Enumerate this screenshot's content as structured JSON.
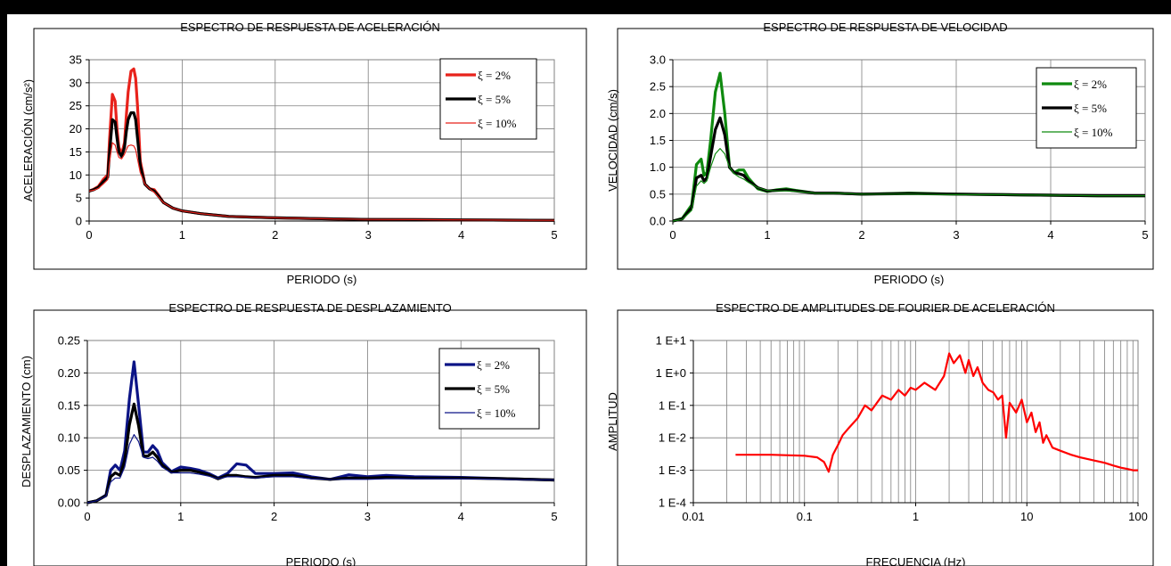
{
  "charts": [
    {
      "type": "line",
      "title": "ESPECTRO DE RESPUESTA DE ACELERACIÓN",
      "xlabel": "PERIODO (s)",
      "ylabel": "ACELERACIÓN (cm/s²)",
      "xlim": [
        0,
        5
      ],
      "ylim": [
        0,
        35
      ],
      "xticks": [
        "0",
        "1",
        "2",
        "3",
        "4",
        "5"
      ],
      "yticks": [
        "0",
        "5",
        "10",
        "15",
        "20",
        "25",
        "30",
        "35"
      ],
      "legend_position": "top-right",
      "series": [
        {
          "name": "ξ = 2%",
          "color": "#e8221b",
          "width": 3.2,
          "x": [
            0,
            0.05,
            0.1,
            0.15,
            0.2,
            0.22,
            0.25,
            0.28,
            0.3,
            0.32,
            0.35,
            0.38,
            0.4,
            0.42,
            0.45,
            0.48,
            0.5,
            0.52,
            0.55,
            0.58,
            0.6,
            0.65,
            0.7,
            0.75,
            0.8,
            0.9,
            1,
            1.2,
            1.5,
            2,
            2.5,
            3,
            3.5,
            4,
            4.5,
            5
          ],
          "y": [
            6.5,
            6.9,
            7.5,
            9,
            10,
            18,
            27.5,
            26,
            20,
            16,
            14.5,
            17,
            23,
            28,
            32.5,
            33,
            31,
            25,
            13,
            10,
            8,
            7,
            6.8,
            5.5,
            4,
            2.8,
            2.2,
            1.6,
            1,
            0.7,
            0.5,
            0.35,
            0.3,
            0.25,
            0.2,
            0.15
          ]
        },
        {
          "name": "ξ = 5%",
          "color": "#000000",
          "width": 3.2,
          "x": [
            0,
            0.05,
            0.1,
            0.15,
            0.2,
            0.22,
            0.25,
            0.28,
            0.3,
            0.32,
            0.35,
            0.38,
            0.4,
            0.42,
            0.45,
            0.48,
            0.5,
            0.52,
            0.55,
            0.58,
            0.6,
            0.65,
            0.7,
            0.75,
            0.8,
            0.9,
            1,
            1.2,
            1.5,
            2,
            2.5,
            3,
            3.5,
            4,
            4.5,
            5
          ],
          "y": [
            6.5,
            6.8,
            7.3,
            8.5,
            9.5,
            15,
            22,
            21.5,
            18,
            15,
            14,
            16,
            19.5,
            22,
            23.5,
            23.5,
            22,
            18,
            12,
            9.5,
            8,
            7,
            6.5,
            5.3,
            4,
            2.8,
            2.2,
            1.6,
            1,
            0.7,
            0.5,
            0.35,
            0.3,
            0.25,
            0.2,
            0.15
          ]
        },
        {
          "name": "ξ = 10%",
          "color": "#e8221b",
          "width": 1.2,
          "x": [
            0,
            0.05,
            0.1,
            0.15,
            0.2,
            0.22,
            0.25,
            0.28,
            0.3,
            0.32,
            0.35,
            0.38,
            0.4,
            0.42,
            0.45,
            0.48,
            0.5,
            0.52,
            0.55,
            0.58,
            0.6,
            0.65,
            0.7,
            0.75,
            0.8,
            0.9,
            1,
            1.2,
            1.5,
            2,
            2.5,
            3,
            3.5,
            4,
            4.5,
            5
          ],
          "y": [
            6.5,
            6.7,
            7.1,
            8,
            9,
            13,
            17,
            16.5,
            15,
            13.8,
            13.5,
            14.5,
            15.5,
            16.3,
            16.5,
            16.3,
            15.5,
            13.5,
            10.5,
            9,
            8,
            7,
            6.2,
            5.1,
            4,
            2.8,
            2.2,
            1.6,
            1,
            0.7,
            0.5,
            0.35,
            0.3,
            0.25,
            0.2,
            0.15
          ]
        }
      ]
    },
    {
      "type": "line",
      "title": "ESPECTRO DE RESPUESTA DE VELOCIDAD",
      "xlabel": "PERIODO (s)",
      "ylabel": "VELOCIDAD (cm/s)",
      "xlim": [
        0,
        5
      ],
      "ylim": [
        0,
        3
      ],
      "xticks": [
        "0",
        "1",
        "2",
        "3",
        "4",
        "5"
      ],
      "yticks": [
        "0.0",
        "0.5",
        "1.0",
        "1.5",
        "2.0",
        "2.5",
        "3.0"
      ],
      "legend_position": "top-right",
      "series": [
        {
          "name": "ξ = 2%",
          "color": "#0f8a0f",
          "width": 3.2,
          "x": [
            0,
            0.1,
            0.2,
            0.25,
            0.3,
            0.33,
            0.36,
            0.4,
            0.45,
            0.5,
            0.55,
            0.6,
            0.65,
            0.7,
            0.75,
            0.8,
            0.9,
            1,
            1.1,
            1.2,
            1.3,
            1.5,
            1.7,
            2,
            2.5,
            3,
            3.5,
            4,
            4.5,
            5
          ],
          "y": [
            0,
            0.05,
            0.3,
            1.05,
            1.15,
            0.85,
            0.9,
            1.5,
            2.4,
            2.75,
            2,
            1,
            0.9,
            0.95,
            0.95,
            0.8,
            0.6,
            0.55,
            0.58,
            0.6,
            0.57,
            0.52,
            0.52,
            0.5,
            0.52,
            0.5,
            0.49,
            0.48,
            0.47,
            0.47
          ]
        },
        {
          "name": "ξ = 5%",
          "color": "#000000",
          "width": 3.2,
          "x": [
            0,
            0.1,
            0.2,
            0.25,
            0.3,
            0.33,
            0.36,
            0.4,
            0.45,
            0.5,
            0.55,
            0.6,
            0.65,
            0.7,
            0.75,
            0.8,
            0.9,
            1,
            1.1,
            1.2,
            1.3,
            1.5,
            1.7,
            2,
            2.5,
            3,
            3.5,
            4,
            4.5,
            5
          ],
          "y": [
            0,
            0.04,
            0.25,
            0.8,
            0.85,
            0.75,
            0.8,
            1.2,
            1.7,
            1.92,
            1.6,
            1,
            0.9,
            0.88,
            0.85,
            0.75,
            0.62,
            0.56,
            0.57,
            0.58,
            0.56,
            0.52,
            0.52,
            0.5,
            0.51,
            0.5,
            0.49,
            0.48,
            0.47,
            0.47
          ]
        },
        {
          "name": "ξ = 10%",
          "color": "#0f8a0f",
          "width": 1.2,
          "x": [
            0,
            0.1,
            0.2,
            0.25,
            0.3,
            0.33,
            0.36,
            0.4,
            0.45,
            0.5,
            0.55,
            0.6,
            0.65,
            0.7,
            0.75,
            0.8,
            0.9,
            1,
            1.1,
            1.2,
            1.3,
            1.5,
            1.7,
            2,
            2.5,
            3,
            3.5,
            4,
            4.5,
            5
          ],
          "y": [
            0,
            0.03,
            0.2,
            0.65,
            0.75,
            0.7,
            0.75,
            1,
            1.25,
            1.35,
            1.25,
            1,
            0.88,
            0.82,
            0.78,
            0.72,
            0.62,
            0.57,
            0.56,
            0.56,
            0.55,
            0.52,
            0.52,
            0.5,
            0.5,
            0.49,
            0.49,
            0.48,
            0.47,
            0.47
          ]
        }
      ]
    },
    {
      "type": "line",
      "title": "ESPECTRO DE RESPUESTA DE DESPLAZAMIENTO",
      "xlabel": "PERIODO (s)",
      "ylabel": "DESPLAZAMIENTO (cm)",
      "xlim": [
        0,
        5
      ],
      "ylim": [
        0,
        0.25
      ],
      "xticks": [
        "0",
        "1",
        "2",
        "3",
        "4",
        "5"
      ],
      "yticks": [
        "0.00",
        "0.05",
        "0.10",
        "0.15",
        "0.20",
        "0.25"
      ],
      "legend_position": "top-right",
      "series": [
        {
          "name": "ξ = 2%",
          "color": "#0c1486",
          "width": 3.2,
          "x": [
            0,
            0.1,
            0.2,
            0.25,
            0.3,
            0.35,
            0.4,
            0.45,
            0.5,
            0.55,
            0.6,
            0.65,
            0.7,
            0.75,
            0.8,
            0.9,
            1,
            1.1,
            1.2,
            1.3,
            1.4,
            1.5,
            1.6,
            1.7,
            1.8,
            2,
            2.2,
            2.4,
            2.6,
            2.8,
            3,
            3.2,
            3.5,
            4,
            4.5,
            5
          ],
          "y": [
            0,
            0.003,
            0.012,
            0.05,
            0.058,
            0.05,
            0.08,
            0.16,
            0.217,
            0.15,
            0.078,
            0.078,
            0.088,
            0.08,
            0.062,
            0.048,
            0.055,
            0.053,
            0.05,
            0.045,
            0.038,
            0.045,
            0.06,
            0.058,
            0.045,
            0.045,
            0.046,
            0.04,
            0.036,
            0.043,
            0.04,
            0.042,
            0.04,
            0.039,
            0.037,
            0.035
          ]
        },
        {
          "name": "ξ = 5%",
          "color": "#000000",
          "width": 3.2,
          "x": [
            0,
            0.1,
            0.2,
            0.25,
            0.3,
            0.35,
            0.4,
            0.45,
            0.5,
            0.55,
            0.6,
            0.65,
            0.7,
            0.75,
            0.8,
            0.9,
            1,
            1.1,
            1.2,
            1.3,
            1.4,
            1.5,
            1.6,
            1.7,
            1.8,
            2,
            2.2,
            2.4,
            2.6,
            2.8,
            3,
            3.2,
            3.5,
            4,
            4.5,
            5
          ],
          "y": [
            0,
            0.003,
            0.011,
            0.04,
            0.046,
            0.042,
            0.065,
            0.12,
            0.152,
            0.118,
            0.072,
            0.072,
            0.078,
            0.07,
            0.058,
            0.047,
            0.05,
            0.05,
            0.047,
            0.043,
            0.037,
            0.042,
            0.042,
            0.04,
            0.039,
            0.042,
            0.042,
            0.038,
            0.036,
            0.038,
            0.038,
            0.039,
            0.038,
            0.038,
            0.037,
            0.035
          ]
        },
        {
          "name": "ξ = 10%",
          "color": "#0c1486",
          "width": 1.2,
          "x": [
            0,
            0.1,
            0.2,
            0.25,
            0.3,
            0.35,
            0.4,
            0.45,
            0.5,
            0.55,
            0.6,
            0.65,
            0.7,
            0.75,
            0.8,
            0.9,
            1,
            1.1,
            1.2,
            1.3,
            1.4,
            1.5,
            1.6,
            1.7,
            1.8,
            2,
            2.2,
            2.4,
            2.6,
            2.8,
            3,
            3.2,
            3.5,
            4,
            4.5,
            5
          ],
          "y": [
            0,
            0.003,
            0.01,
            0.032,
            0.038,
            0.038,
            0.055,
            0.09,
            0.105,
            0.094,
            0.07,
            0.068,
            0.07,
            0.064,
            0.055,
            0.046,
            0.046,
            0.046,
            0.044,
            0.041,
            0.037,
            0.04,
            0.04,
            0.039,
            0.038,
            0.04,
            0.04,
            0.037,
            0.036,
            0.036,
            0.036,
            0.037,
            0.037,
            0.037,
            0.036,
            0.035
          ]
        }
      ]
    },
    {
      "type": "line",
      "title": "ESPECTRO DE AMPLITUDES DE FOURIER DE ACELERACIÓN",
      "xlabel": "FRECUENCIA (Hz)",
      "ylabel": "AMPLITUD",
      "xscale": "log",
      "yscale": "log",
      "xlim": [
        0.01,
        100
      ],
      "ylim": [
        0.0001,
        10
      ],
      "xtick_values": [
        0.01,
        0.1,
        1,
        10,
        100
      ],
      "xticks": [
        "0.01",
        "0.1",
        "1",
        "10",
        "100"
      ],
      "ytick_values": [
        0.0001,
        0.001,
        0.01,
        0.1,
        1,
        10
      ],
      "yticks": [
        "1 E-4",
        "1 E-3",
        "1 E-2",
        "1 E-1",
        "1 E+0",
        "1 E+1"
      ],
      "series": [
        {
          "color": "#ff0000",
          "width": 2.2,
          "x": [
            0.024,
            0.05,
            0.1,
            0.13,
            0.15,
            0.165,
            0.18,
            0.2,
            0.22,
            0.25,
            0.3,
            0.35,
            0.4,
            0.5,
            0.6,
            0.7,
            0.8,
            0.9,
            1,
            1.2,
            1.5,
            1.8,
            2,
            2.2,
            2.5,
            2.8,
            3,
            3.3,
            3.6,
            4,
            4.5,
            5,
            5.5,
            6,
            6.5,
            7,
            8,
            9,
            10,
            11,
            12,
            13,
            14,
            15,
            17,
            20,
            25,
            30,
            40,
            50,
            60,
            70,
            80,
            90,
            100
          ],
          "y": [
            0.003,
            0.003,
            0.0028,
            0.0025,
            0.0018,
            0.0009,
            0.003,
            0.006,
            0.012,
            0.02,
            0.04,
            0.1,
            0.07,
            0.2,
            0.15,
            0.3,
            0.2,
            0.35,
            0.3,
            0.5,
            0.3,
            0.8,
            4,
            2,
            3.5,
            1,
            2.5,
            0.8,
            1.5,
            0.5,
            0.3,
            0.25,
            0.15,
            0.2,
            0.01,
            0.12,
            0.06,
            0.15,
            0.03,
            0.06,
            0.015,
            0.03,
            0.007,
            0.012,
            0.005,
            0.004,
            0.003,
            0.0025,
            0.002,
            0.0017,
            0.0014,
            0.0012,
            0.0011,
            0.001,
            0.001
          ]
        }
      ]
    }
  ]
}
